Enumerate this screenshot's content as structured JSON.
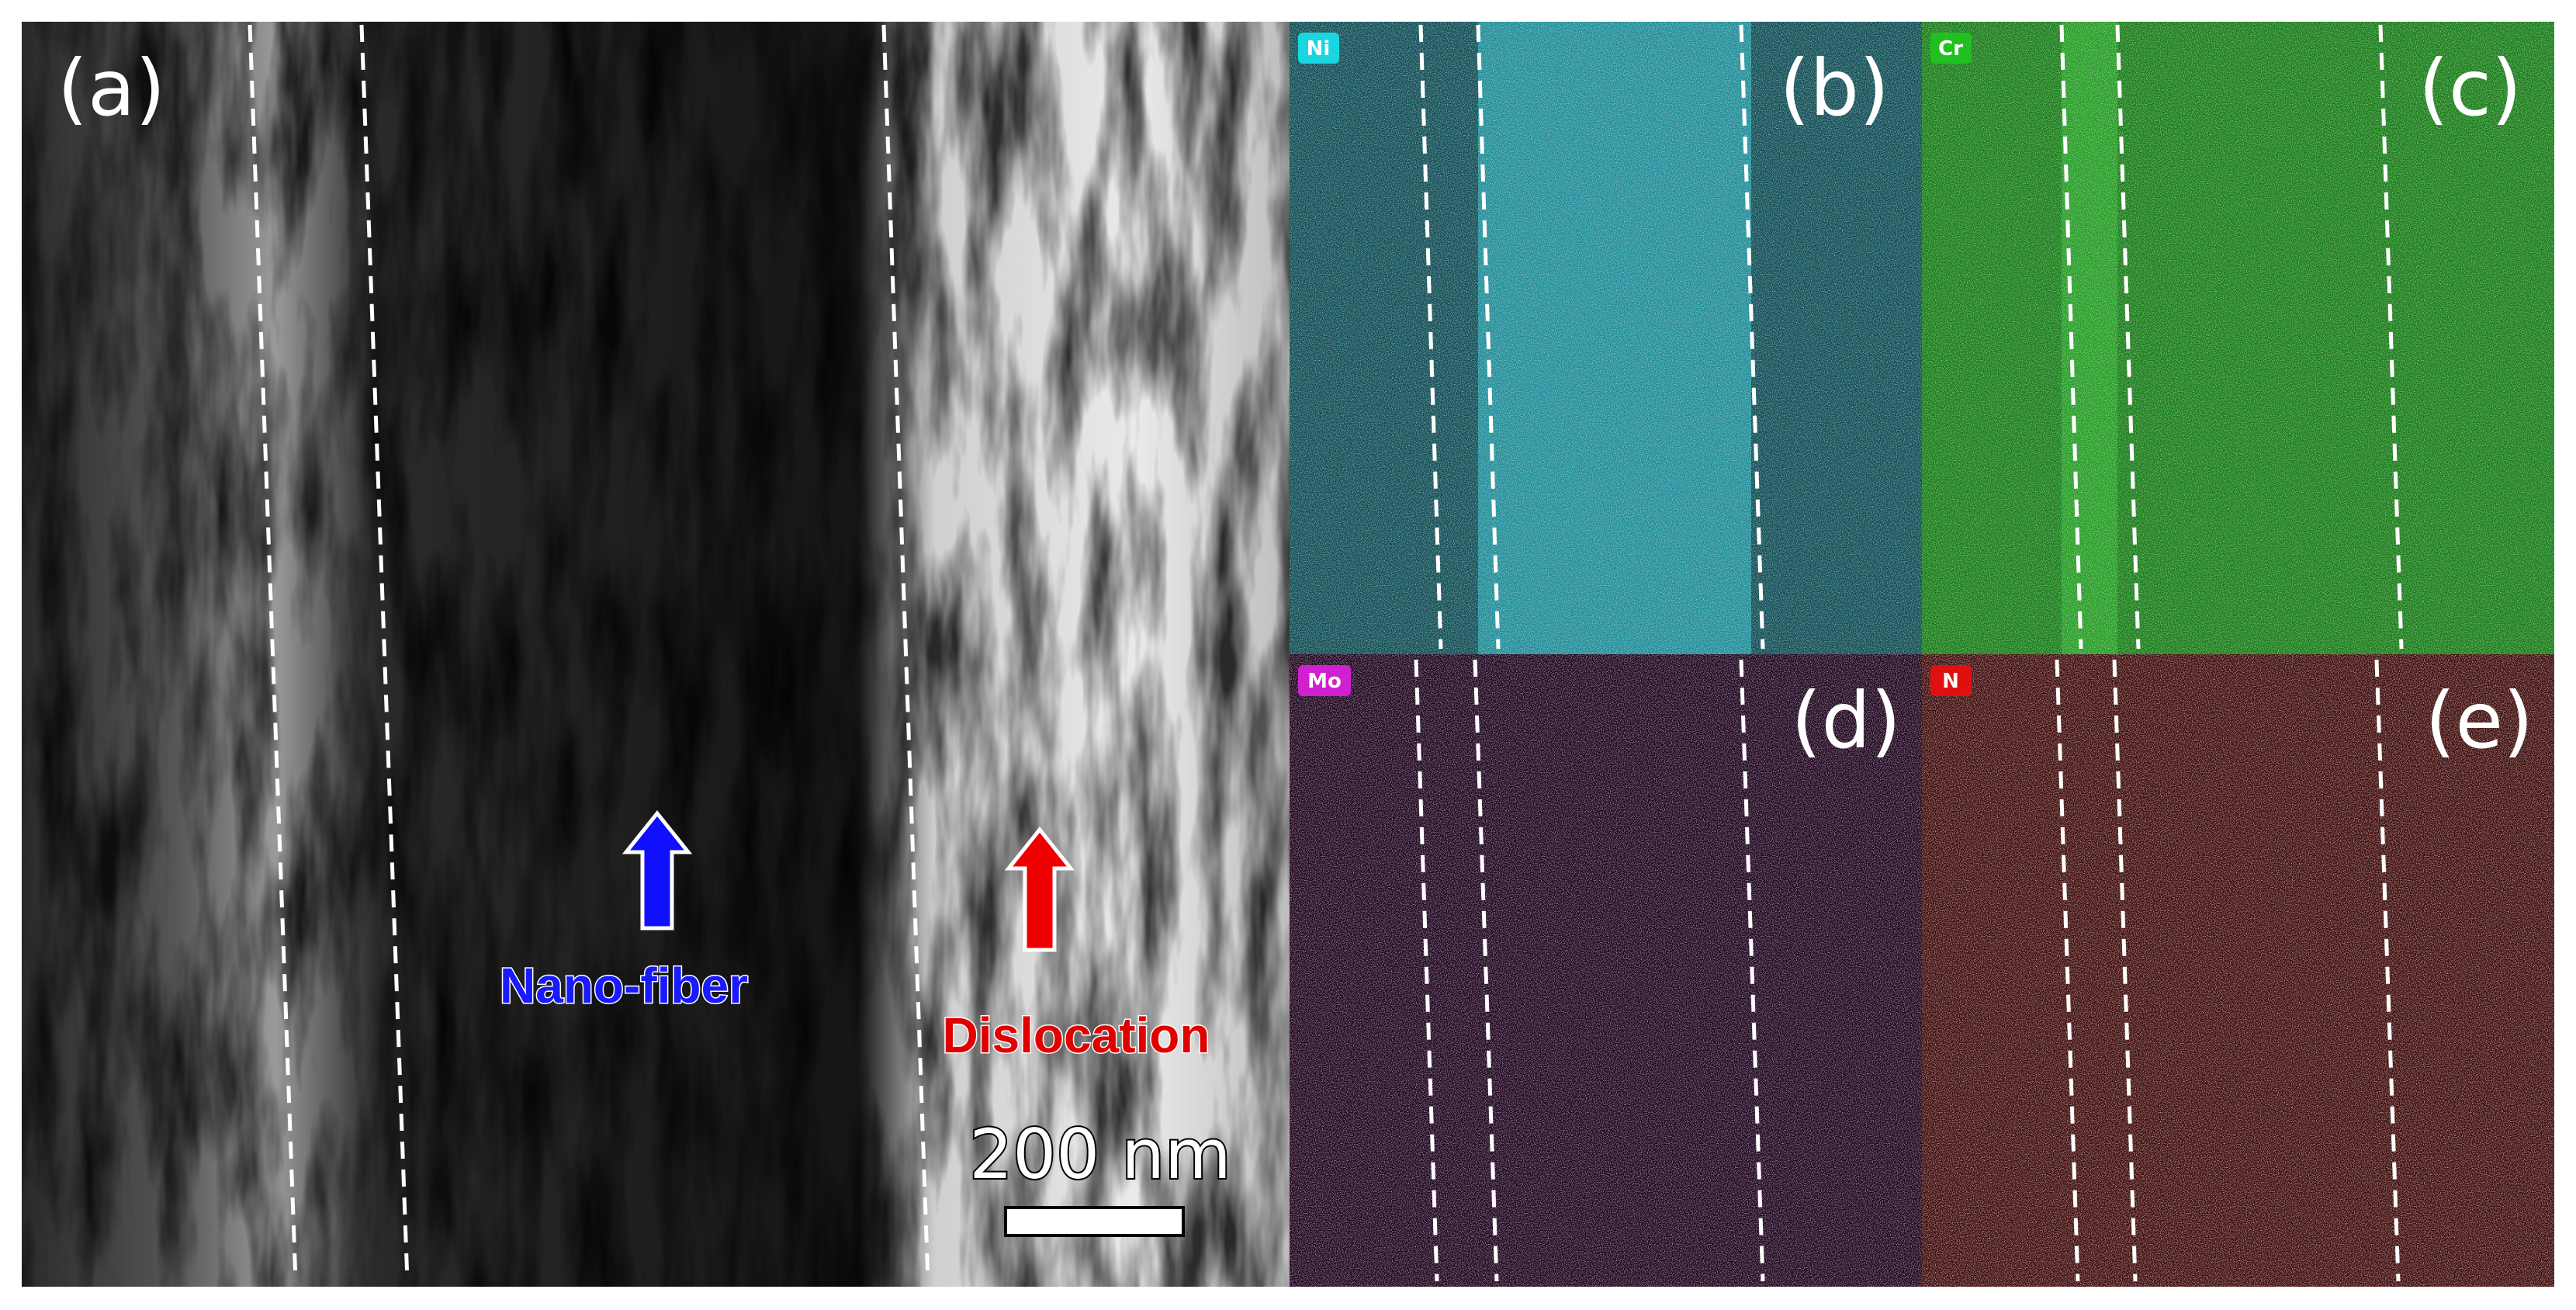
{
  "panels": [
    {
      "label": "(a)",
      "annotations": [
        "Nano-fiber",
        "Dislocation"
      ],
      "scale_bar": "200 nm"
    },
    {
      "label": "(b)",
      "element": "Ni"
    },
    {
      "label": "(c)",
      "element": "Cr"
    },
    {
      "label": "(d)",
      "element": "Mo"
    },
    {
      "label": "(e)",
      "element": "N"
    }
  ]
}
